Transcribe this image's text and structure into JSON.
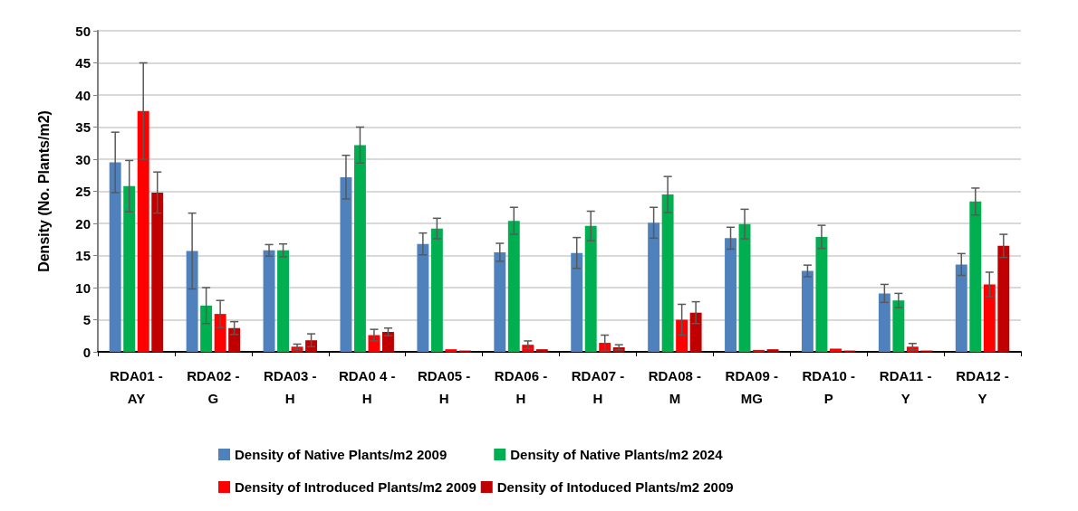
{
  "chart_data": {
    "type": "bar",
    "ylabel": "Density (No. Plants/m2)",
    "categories": [
      "RDA01 -\nAY",
      "RDA02 -\nG",
      "RDA03 -\nH",
      "RDA0 4 -\nH",
      "RDA05 -\nH",
      "RDA06 -\nH",
      "RDA07 -\nH",
      "RDA08 -\nM",
      "RDA09 -\nMG",
      "RDA10 -\nP",
      "RDA11 -\nY",
      "RDA12 -\nY"
    ],
    "series": [
      {
        "name": "Density of Native Plants/m2 2009",
        "color": "#4f81bd",
        "values": [
          29.5,
          15.7,
          15.8,
          27.2,
          16.8,
          15.5,
          15.4,
          20.1,
          17.7,
          12.6,
          9.1,
          13.6
        ],
        "errors": [
          4.7,
          5.9,
          0.9,
          3.4,
          1.7,
          1.4,
          2.4,
          2.4,
          1.7,
          0.9,
          1.4,
          1.7
        ]
      },
      {
        "name": "Density of Native Plants/m2 2024",
        "color": "#00b050",
        "values": [
          25.8,
          7.2,
          15.8,
          32.2,
          19.2,
          20.4,
          19.6,
          24.5,
          19.9,
          17.9,
          8.0,
          23.4
        ],
        "errors": [
          4.0,
          2.8,
          1.0,
          2.8,
          1.6,
          2.1,
          2.3,
          2.8,
          2.3,
          1.8,
          1.1,
          2.1
        ]
      },
      {
        "name": "Density of Introduced Plants/m2 2009",
        "color": "#ff0000",
        "values": [
          37.5,
          5.9,
          0.8,
          2.6,
          0.4,
          1.1,
          1.4,
          5.0,
          0.3,
          0.5,
          0.8,
          10.5
        ],
        "errors": [
          7.5,
          2.1,
          0.4,
          0.9,
          null,
          0.6,
          1.2,
          2.4,
          null,
          null,
          0.5,
          1.9
        ]
      },
      {
        "name": "Density of Intoduced Plants/m2 2009",
        "color": "#c00000",
        "values": [
          24.8,
          3.7,
          1.8,
          3.1,
          0.2,
          0.4,
          0.7,
          6.1,
          0.4,
          0.2,
          0.2,
          16.5
        ],
        "errors": [
          3.2,
          1.0,
          1.0,
          0.6,
          null,
          null,
          0.4,
          1.7,
          null,
          null,
          null,
          1.8
        ]
      }
    ],
    "ylim": [
      0,
      50
    ],
    "yticks": [
      0,
      5,
      10,
      15,
      20,
      25,
      30,
      35,
      40,
      45,
      50
    ],
    "grid": "y",
    "legend": "bottom"
  }
}
